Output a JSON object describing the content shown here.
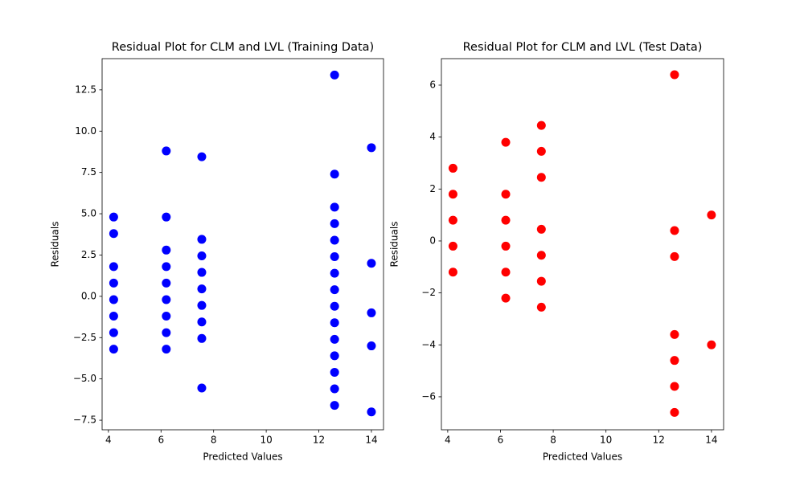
{
  "chart_data": [
    {
      "type": "scatter",
      "title": "Residual Plot for CLM and LVL (Training Data)",
      "x_label": "Predicted Values",
      "y_label": "Residuals",
      "color": "#0000ff",
      "x": [
        4.2,
        4.2,
        4.2,
        4.2,
        4.2,
        4.2,
        4.2,
        4.2,
        6.2,
        6.2,
        6.2,
        6.2,
        6.2,
        6.2,
        6.2,
        6.2,
        6.2,
        7.55,
        7.55,
        7.55,
        7.55,
        7.55,
        7.55,
        7.55,
        7.55,
        7.55,
        12.6,
        12.6,
        12.6,
        12.6,
        12.6,
        12.6,
        12.6,
        12.6,
        12.6,
        12.6,
        12.6,
        12.6,
        12.6,
        12.6,
        12.6,
        14,
        14,
        14,
        14,
        14
      ],
      "values": [
        4.8,
        3.8,
        1.8,
        0.8,
        -0.2,
        -1.2,
        -2.2,
        -3.2,
        8.8,
        4.8,
        2.8,
        1.8,
        0.8,
        -0.2,
        -1.2,
        -2.2,
        -3.2,
        8.45,
        3.45,
        2.45,
        1.45,
        0.45,
        -0.55,
        -1.55,
        -2.55,
        -5.55,
        13.4,
        7.4,
        5.4,
        4.4,
        3.4,
        2.4,
        1.4,
        0.4,
        -0.6,
        -1.6,
        -2.6,
        -3.6,
        -4.6,
        -5.6,
        -6.6,
        9,
        2,
        -1,
        -3,
        -7
      ],
      "xlim": [
        3.76,
        14.46
      ],
      "ylim": [
        -8.08,
        14.39
      ],
      "xticks": [
        4,
        6,
        8,
        10,
        12,
        14
      ],
      "yticks": [
        {
          "value": -7.5,
          "label": "−7.5"
        },
        {
          "value": -5,
          "label": "−5.0"
        },
        {
          "value": -2.5,
          "label": "−2.5"
        },
        {
          "value": 0,
          "label": "0.0"
        },
        2.5,
        {
          "value": 5,
          "label": "5.0"
        },
        7.5,
        {
          "value": 10,
          "label": "10.0"
        },
        12.5
      ]
    },
    {
      "type": "scatter",
      "title": "Residual Plot for CLM and LVL (Test Data)",
      "x_label": "Predicted Values",
      "y_label": "Residuals",
      "color": "#ff0000",
      "x": [
        4.2,
        4.2,
        4.2,
        4.2,
        4.2,
        6.2,
        6.2,
        6.2,
        6.2,
        6.2,
        6.2,
        7.55,
        7.55,
        7.55,
        7.55,
        7.55,
        7.55,
        7.55,
        12.6,
        12.6,
        12.6,
        12.6,
        12.6,
        12.6,
        12.6,
        14,
        14
      ],
      "values": [
        2.8,
        1.8,
        0.8,
        -0.2,
        -1.2,
        3.8,
        1.8,
        0.8,
        -0.2,
        -1.2,
        -2.2,
        4.45,
        3.45,
        2.45,
        0.45,
        -0.55,
        -1.55,
        -2.55,
        6.4,
        0.4,
        -0.6,
        -3.6,
        -4.6,
        -5.6,
        -6.6,
        1,
        -4
      ],
      "xlim": [
        3.76,
        14.46
      ],
      "ylim": [
        -7.27,
        7.02
      ],
      "xticks": [
        4,
        6,
        8,
        10,
        12,
        14
      ],
      "yticks": [
        {
          "value": -6,
          "label": "−6"
        },
        {
          "value": -4,
          "label": "−4"
        },
        {
          "value": -2,
          "label": "−2"
        },
        0,
        2,
        4,
        6
      ]
    }
  ]
}
